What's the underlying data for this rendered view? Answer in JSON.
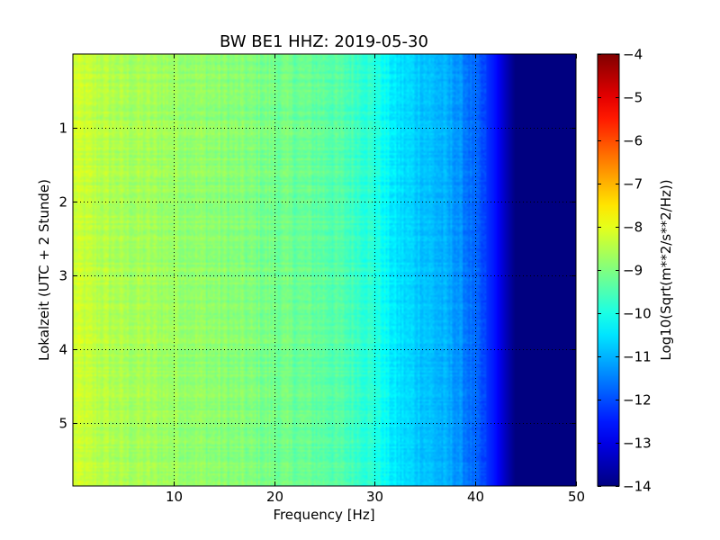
{
  "chart_data": {
    "type": "heatmap",
    "title": "BW BE1 HHZ: 2019-05-30",
    "xlabel": "Frequency [Hz]",
    "ylabel": "Lokalzeit (UTC + 2 Stunde)",
    "xlim": [
      0,
      50
    ],
    "ylim": [
      5.85,
      0
    ],
    "x_ticks": [
      10,
      20,
      30,
      40,
      50
    ],
    "x_tick_labels": [
      "10",
      "20",
      "30",
      "40",
      "50"
    ],
    "y_ticks": [
      1,
      2,
      3,
      4,
      5
    ],
    "y_tick_labels": [
      "1",
      "2",
      "3",
      "4",
      "5"
    ],
    "grid": true,
    "colormap": "jet",
    "colorbar": {
      "label": "Log10(Sqrt(m**2/s**2/Hz))",
      "range": [
        -14,
        -4
      ],
      "ticks": [
        -4,
        -5,
        -6,
        -7,
        -8,
        -9,
        -10,
        -11,
        -12,
        -13,
        -14
      ],
      "tick_labels": [
        "−4",
        "−5",
        "−6",
        "−7",
        "−8",
        "−9",
        "−10",
        "−11",
        "−12",
        "−13",
        "−14"
      ]
    },
    "frequency_profile": {
      "frequency_hz": [
        0,
        2,
        5,
        10,
        15,
        20,
        25,
        28,
        30,
        31,
        32,
        35,
        38,
        40,
        42,
        43,
        44,
        50
      ],
      "log_psd": [
        -8.2,
        -8.4,
        -8.6,
        -8.7,
        -8.9,
        -9.1,
        -9.3,
        -9.6,
        -9.9,
        -10.2,
        -10.5,
        -10.8,
        -11.2,
        -11.8,
        -12.6,
        -13.4,
        -14.0,
        -14.0
      ]
    }
  }
}
